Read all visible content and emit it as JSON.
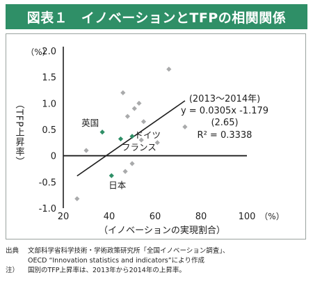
{
  "header": {
    "title": "図表１　イノベーションとTFPの相関関係",
    "bg_color": "#2f8f67"
  },
  "chart_data": {
    "type": "scatter",
    "xlabel": "（イノベーションの実現割合）",
    "x_unit": "（%）",
    "ylabel": "（TFP上昇率）",
    "y_unit": "（%）",
    "xlim": [
      20,
      100
    ],
    "ylim": [
      -1.0,
      2.0
    ],
    "x_ticks": [
      "20",
      "40",
      "60",
      "80",
      "100"
    ],
    "y_ticks": [
      "2.0",
      "1.5",
      "1.0",
      "0.5",
      "0",
      "-0.5",
      "-1.0"
    ],
    "grid": false,
    "series": [
      {
        "values": [
          {
            "x": 26,
            "y": -0.82
          },
          {
            "x": 30,
            "y": 0.1
          },
          {
            "x": 46,
            "y": 1.2
          },
          {
            "x": 47,
            "y": -0.3
          },
          {
            "x": 48,
            "y": 0.75
          },
          {
            "x": 50,
            "y": -0.15
          },
          {
            "x": 51,
            "y": 0.9
          },
          {
            "x": 53,
            "y": 1.0
          },
          {
            "x": 54,
            "y": 0.3
          },
          {
            "x": 55,
            "y": 0.65
          },
          {
            "x": 61,
            "y": 0.25
          },
          {
            "x": 66,
            "y": 1.65
          },
          {
            "x": 73,
            "y": 0.55
          }
        ],
        "color": "#a9aaab"
      },
      {
        "values": [
          {
            "x": 37,
            "y": 0.45,
            "label": "英国"
          },
          {
            "x": 45,
            "y": 0.32,
            "label": "ドイツ"
          },
          {
            "x": 50,
            "y": 0.37,
            "label": "フランス"
          },
          {
            "x": 41,
            "y": -0.38,
            "label": "日本"
          }
        ],
        "color": "#2f8f67"
      }
    ],
    "regression": {
      "slope": 0.0305,
      "intercept": -1.179,
      "x_range": [
        26,
        73
      ],
      "annotation": [
        "(2013～2014年)",
        "y = 0.0305x -1.179",
        "(2.65)",
        "R² = 0.3338"
      ]
    }
  },
  "notes": {
    "source_label": "出典",
    "source_line1": "文部科学省科学技術・学術政策研究所「全国イノベーション調査」、",
    "source_line2": "OECD “Innovation statistics and indicators”により作成",
    "note_label": "注）",
    "note_text": "国別のTFP上昇率は、2013年から2014年の上昇率。"
  }
}
